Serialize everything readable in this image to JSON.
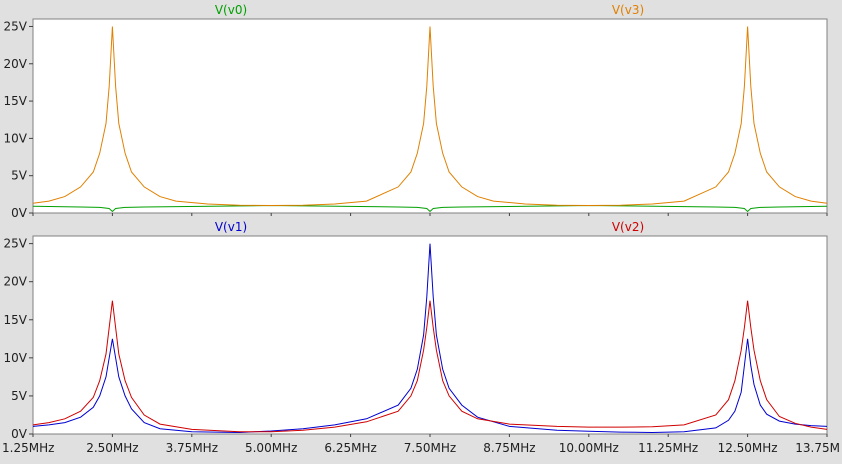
{
  "chart_data": [
    {
      "type": "line",
      "series": [
        {
          "name": "V(v0)",
          "color": "#00a000",
          "x": [
            1.25,
            2.0,
            2.3,
            2.45,
            2.5,
            2.55,
            2.7,
            3.0,
            5.0,
            7.0,
            7.3,
            7.45,
            7.5,
            7.55,
            7.7,
            8.0,
            10.0,
            12.0,
            12.3,
            12.45,
            12.5,
            12.55,
            12.7,
            13.0,
            13.75
          ],
          "y": [
            0.9,
            0.8,
            0.75,
            0.6,
            0.2,
            0.6,
            0.75,
            0.8,
            1.0,
            0.8,
            0.75,
            0.6,
            0.2,
            0.6,
            0.75,
            0.8,
            1.0,
            0.8,
            0.75,
            0.6,
            0.2,
            0.6,
            0.75,
            0.8,
            0.9
          ]
        },
        {
          "name": "V(v3)",
          "color": "#e08000",
          "x": [
            1.25,
            1.5,
            1.75,
            2.0,
            2.2,
            2.3,
            2.4,
            2.45,
            2.5,
            2.55,
            2.6,
            2.7,
            2.8,
            3.0,
            3.25,
            3.5,
            4.0,
            4.5,
            5.0,
            5.5,
            6.0,
            6.5,
            7.0,
            7.2,
            7.3,
            7.4,
            7.45,
            7.5,
            7.55,
            7.6,
            7.7,
            7.8,
            8.0,
            8.25,
            8.5,
            9.0,
            9.5,
            10.0,
            10.5,
            11.0,
            11.5,
            12.0,
            12.2,
            12.3,
            12.4,
            12.45,
            12.5,
            12.55,
            12.6,
            12.7,
            12.8,
            13.0,
            13.25,
            13.5,
            13.75
          ],
          "y": [
            1.3,
            1.6,
            2.2,
            3.5,
            5.5,
            8,
            12,
            17,
            25,
            17,
            12,
            8,
            5.5,
            3.5,
            2.2,
            1.6,
            1.2,
            1.05,
            1.0,
            1.05,
            1.2,
            1.6,
            3.5,
            5.5,
            8,
            12,
            17,
            25,
            17,
            12,
            8,
            5.5,
            3.5,
            2.2,
            1.6,
            1.2,
            1.05,
            1.0,
            1.05,
            1.2,
            1.6,
            3.5,
            5.5,
            8,
            12,
            17,
            25,
            17,
            12,
            8,
            5.5,
            3.5,
            2.2,
            1.6,
            1.3
          ]
        }
      ],
      "ylim": [
        0,
        26
      ],
      "yticks": [
        "0V",
        "5V",
        "10V",
        "15V",
        "20V",
        "25V"
      ]
    },
    {
      "type": "line",
      "series": [
        {
          "name": "V(v1)",
          "color": "#0000d0",
          "x": [
            1.25,
            1.5,
            1.75,
            2.0,
            2.2,
            2.3,
            2.4,
            2.45,
            2.5,
            2.55,
            2.6,
            2.7,
            2.8,
            3.0,
            3.25,
            3.75,
            4.5,
            5.0,
            5.5,
            6.0,
            6.5,
            7.0,
            7.2,
            7.3,
            7.4,
            7.45,
            7.5,
            7.55,
            7.6,
            7.7,
            7.8,
            8.0,
            8.25,
            8.75,
            9.5,
            10.0,
            10.5,
            11.0,
            11.5,
            12.0,
            12.2,
            12.3,
            12.4,
            12.45,
            12.5,
            12.55,
            12.6,
            12.7,
            12.8,
            13.0,
            13.25,
            13.5,
            13.75
          ],
          "y": [
            1.0,
            1.2,
            1.5,
            2.2,
            3.5,
            5.0,
            7.5,
            10,
            12.5,
            10,
            7.5,
            5.0,
            3.3,
            1.5,
            0.7,
            0.3,
            0.2,
            0.4,
            0.7,
            1.2,
            2.0,
            3.8,
            6.0,
            8.5,
            13,
            18,
            25,
            18,
            13,
            8.5,
            6.0,
            3.8,
            2.2,
            1.0,
            0.5,
            0.35,
            0.25,
            0.2,
            0.3,
            0.8,
            1.8,
            3.0,
            5.5,
            9,
            12.5,
            9,
            6.5,
            3.8,
            2.6,
            1.7,
            1.3,
            1.1,
            1.0
          ]
        },
        {
          "name": "V(v2)",
          "color": "#d00000",
          "x": [
            1.25,
            1.5,
            1.75,
            2.0,
            2.2,
            2.3,
            2.4,
            2.45,
            2.5,
            2.55,
            2.6,
            2.7,
            2.8,
            3.0,
            3.25,
            3.75,
            4.5,
            5.0,
            5.5,
            6.0,
            6.5,
            7.0,
            7.2,
            7.3,
            7.4,
            7.45,
            7.5,
            7.55,
            7.6,
            7.7,
            7.8,
            8.0,
            8.25,
            8.75,
            9.5,
            10.0,
            10.5,
            11.0,
            11.5,
            12.0,
            12.2,
            12.3,
            12.4,
            12.45,
            12.5,
            12.55,
            12.6,
            12.7,
            12.8,
            13.0,
            13.25,
            13.5,
            13.75
          ],
          "y": [
            1.2,
            1.5,
            2.0,
            3.0,
            4.8,
            7.0,
            10.5,
            14,
            17.5,
            14,
            10.5,
            7.0,
            4.8,
            2.5,
            1.3,
            0.6,
            0.3,
            0.3,
            0.5,
            0.9,
            1.6,
            3.0,
            5.0,
            7.0,
            11,
            14,
            17.5,
            14,
            11,
            7.0,
            5.0,
            3.0,
            2.0,
            1.3,
            1.0,
            0.9,
            0.9,
            0.95,
            1.2,
            2.5,
            4.5,
            7.0,
            11,
            14,
            17.5,
            14,
            11,
            7.0,
            4.5,
            2.3,
            1.4,
            0.9,
            0.6
          ]
        }
      ],
      "ylim": [
        0,
        26
      ],
      "yticks": [
        "0V",
        "5V",
        "10V",
        "15V",
        "20V",
        "25V"
      ]
    }
  ],
  "x_axis": {
    "range": [
      1.25,
      13.75
    ],
    "ticks": [
      1.25,
      2.5,
      3.75,
      5.0,
      6.25,
      7.5,
      8.75,
      10.0,
      11.25,
      12.5,
      13.75
    ],
    "tick_labels": [
      "1.25MHz",
      "2.50MHz",
      "3.75MHz",
      "5.00MHz",
      "6.25MHz",
      "7.50MHz",
      "8.75MHz",
      "10.00MHz",
      "11.25MHz",
      "12.50MHz",
      "13.75M"
    ]
  }
}
